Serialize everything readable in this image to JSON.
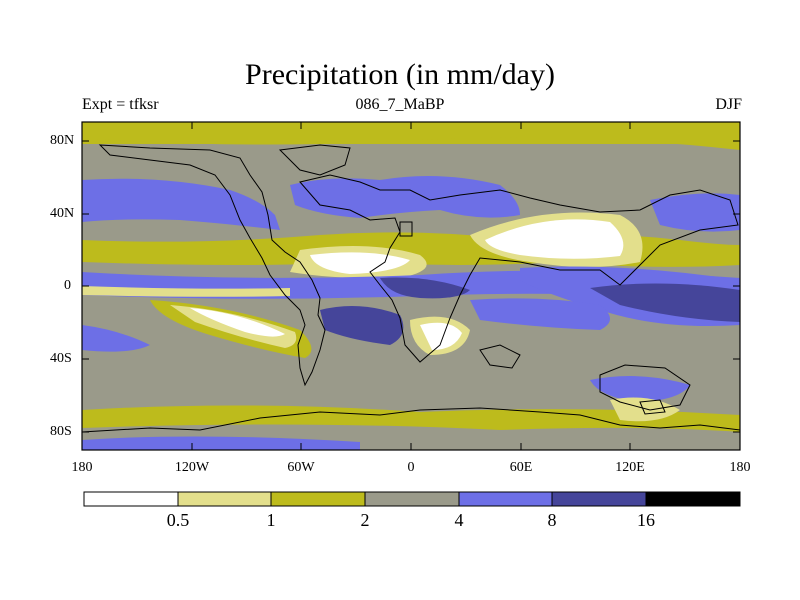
{
  "title": "Precipitation (in mm/day)",
  "subtitle_left": "Expt = tfksr",
  "subtitle_center": "086_7_MaBP",
  "subtitle_right": "DJF",
  "map": {
    "projection": "cylindrical-equidistant",
    "lon_range": [
      -180,
      180
    ],
    "lat_range": [
      -90,
      90
    ],
    "ticks_y": [
      "80N",
      "40N",
      "0",
      "40S",
      "80S"
    ],
    "ticks_x": [
      "180",
      "120W",
      "60W",
      "0",
      "60E",
      "120E",
      "180"
    ]
  },
  "colorbar": {
    "boundaries": [
      "0.5",
      "1",
      "2",
      "4",
      "8",
      "16"
    ],
    "colors": [
      "#ffffff",
      "#e3df8c",
      "#bdbb1c",
      "#9a9a8a",
      "#6d6fe6",
      "#45459a",
      "#000000"
    ]
  }
}
